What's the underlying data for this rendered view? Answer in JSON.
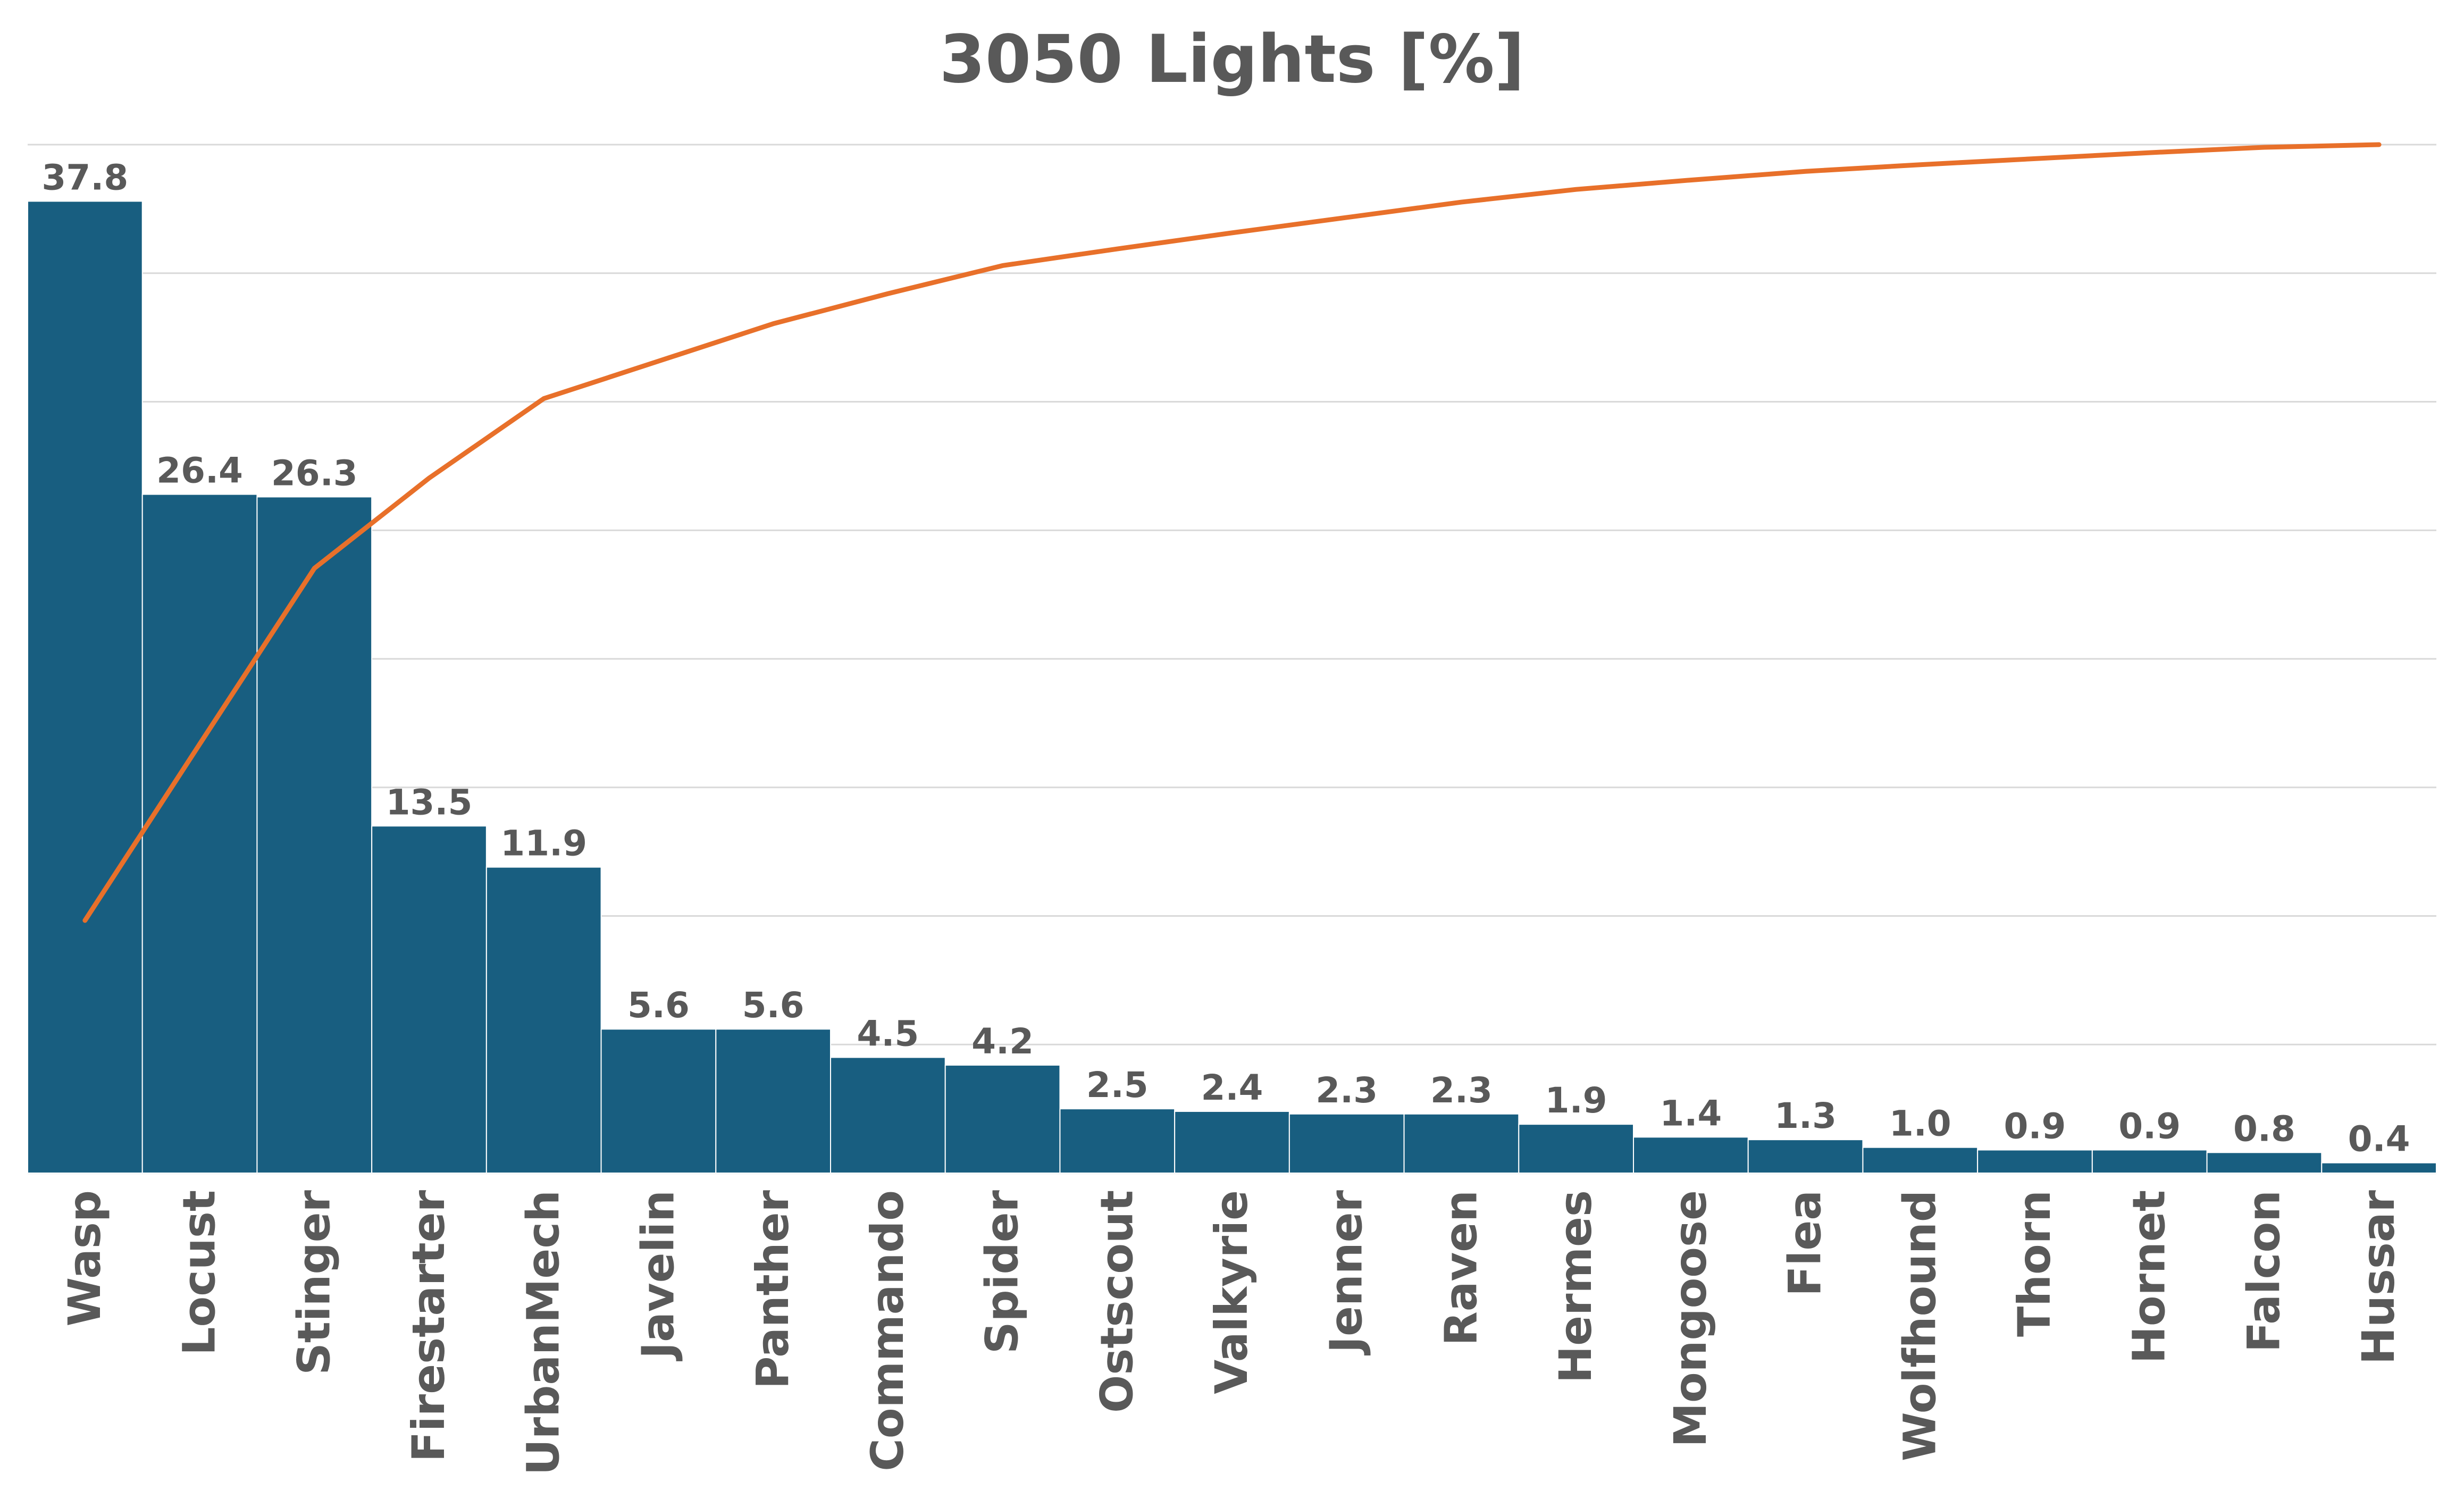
{
  "chart_data": {
    "type": "bar",
    "title": "3050 Lights [%]",
    "xlabel": "",
    "ylabel": "",
    "ylim": [
      0,
      40
    ],
    "grid": true,
    "legend": "none",
    "categories": [
      "Wasp",
      "Locust",
      "Stinger",
      "Firestarter",
      "UrbanMech",
      "Javelin",
      "Panther",
      "Commando",
      "Spider",
      "Ostscout",
      "Valkyrie",
      "Jenner",
      "Raven",
      "Hermes",
      "Mongoose",
      "Flea",
      "Wolfhound",
      "Thorn",
      "Hornet",
      "Falcon",
      "Hussar"
    ],
    "values": [
      37.8,
      26.4,
      26.3,
      13.5,
      11.9,
      5.6,
      5.6,
      4.5,
      4.2,
      2.5,
      2.4,
      2.3,
      2.3,
      1.9,
      1.4,
      1.3,
      1.0,
      0.9,
      0.9,
      0.8,
      0.4
    ],
    "value_labels": [
      "37.8",
      "26.4",
      "26.3",
      "13.5",
      "11.9",
      "5.6",
      "5.6",
      "4.5",
      "4.2",
      "2.5",
      "2.4",
      "2.3",
      "2.3",
      "1.9",
      "1.4",
      "1.3",
      "1.0",
      "0.9",
      "0.9",
      "0.8",
      "0.4"
    ],
    "cumulative_line": {
      "type": "line",
      "values": [
        37.8,
        64.2,
        90.5,
        104.0,
        115.9,
        121.5,
        127.1,
        131.6,
        135.8,
        138.3,
        140.7,
        143.0,
        145.3,
        147.2,
        148.6,
        149.9,
        150.9,
        151.8,
        152.7,
        153.5,
        153.9
      ],
      "ylim": [
        0,
        153.9
      ]
    },
    "colors": {
      "bar": "#185e80",
      "line": "#e8702a",
      "text": "#595959",
      "grid": "#d9d9d9"
    }
  }
}
